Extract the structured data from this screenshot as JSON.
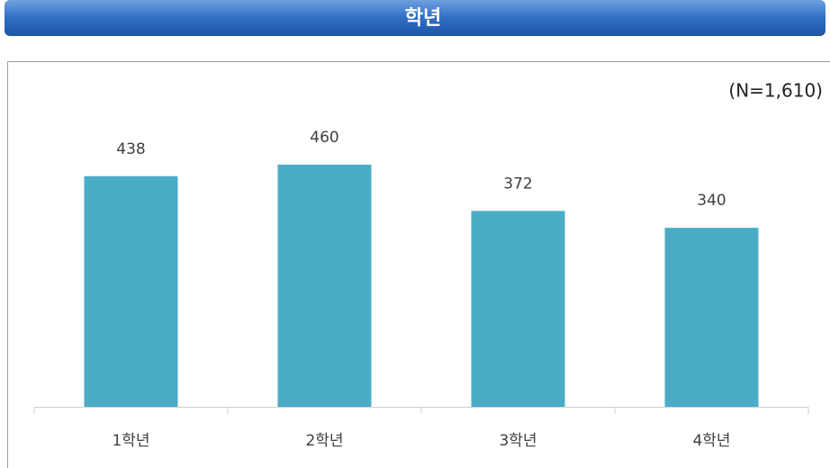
{
  "chart_data": {
    "type": "bar",
    "title": "학년",
    "annotation": "(N=1,610)",
    "categories": [
      "1학년",
      "2학년",
      "3학년",
      "4학년"
    ],
    "values": [
      438,
      460,
      372,
      340
    ],
    "color": "#4bacc6"
  }
}
